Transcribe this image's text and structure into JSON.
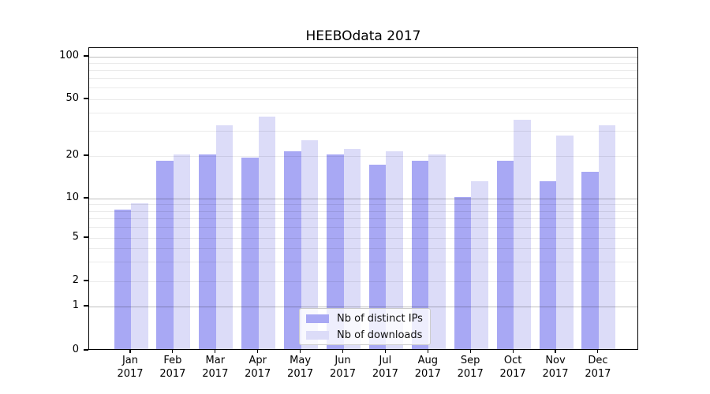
{
  "chart_data": {
    "type": "bar",
    "title": "HEEBOdata 2017",
    "categories": [
      "Jan 2017",
      "Feb 2017",
      "Mar 2017",
      "Apr 2017",
      "May 2017",
      "Jun 2017",
      "Jul 2017",
      "Aug 2017",
      "Sep 2017",
      "Oct 2017",
      "Nov 2017",
      "Dec 2017"
    ],
    "series": [
      {
        "name": "Nb of distinct IPs",
        "color": "#a8a8f4",
        "values": [
          8,
          18,
          20,
          19,
          21,
          20,
          17,
          18,
          10,
          18,
          13,
          15
        ]
      },
      {
        "name": "Nb of downloads",
        "color": "#dcdcf8",
        "values": [
          9,
          20,
          32,
          37,
          25,
          22,
          21,
          20,
          13,
          35,
          27,
          32
        ]
      }
    ],
    "xlabel": "",
    "ylabel": "",
    "yscale": "symlog",
    "ylim": [
      0,
      115
    ],
    "y_tick_labels": [
      0,
      1,
      2,
      5,
      10,
      20,
      50,
      100
    ],
    "y_grid_major": [
      1,
      10,
      100
    ],
    "y_grid_minor": [
      2,
      3,
      4,
      5,
      6,
      7,
      8,
      9,
      20,
      30,
      40,
      50,
      60,
      70,
      80,
      90
    ],
    "grid": true,
    "legend_position": "lower center inside"
  },
  "colors": {
    "background": "#ffffff",
    "axis": "#000000",
    "bar_distinct_ips": "#a8a8f4",
    "bar_downloads": "#dcdcf8",
    "grid_major": "rgba(0,0,0,0.25)",
    "grid_minor": "rgba(0,0,0,0.08)",
    "legend_border": "#cccccc"
  }
}
